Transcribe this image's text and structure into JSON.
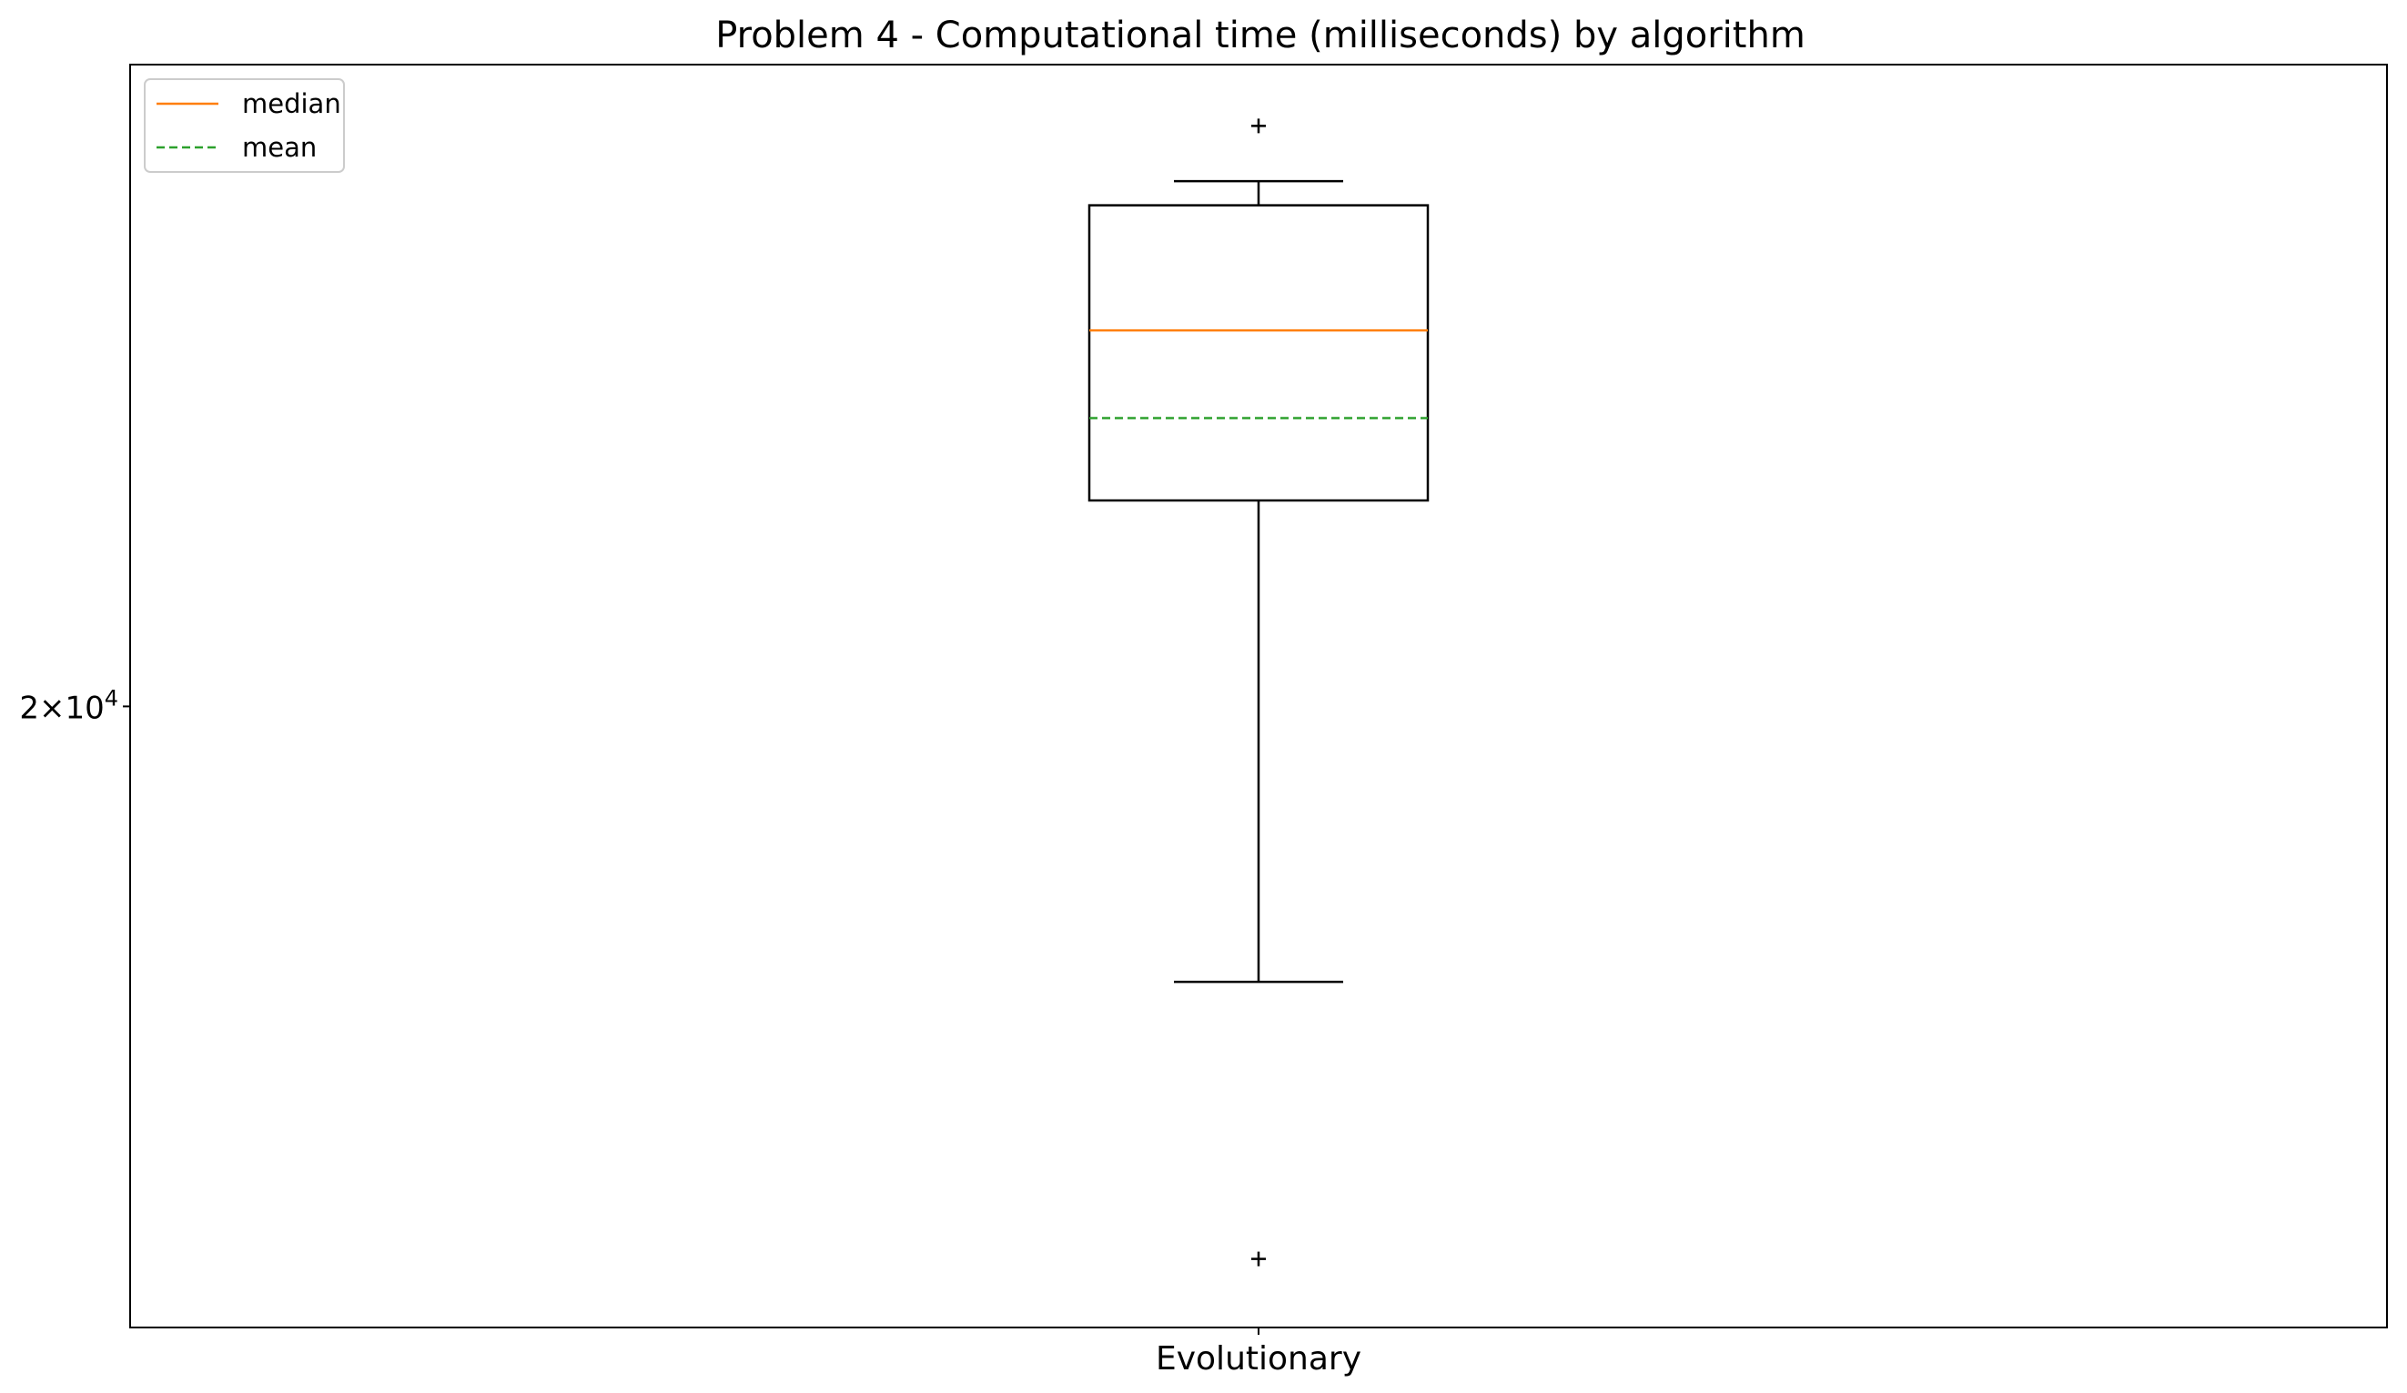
{
  "chart_data": {
    "type": "box",
    "title": "Problem 4 - Computational time (milliseconds) by algorithm",
    "xlabel": "",
    "ylabel": "",
    "y_scale": "log",
    "ylim": [
      14800,
      27300
    ],
    "y_ticks": [
      {
        "value": 20000,
        "label": "2×10",
        "exponent": "4"
      }
    ],
    "categories": [
      "Evolutionary"
    ],
    "boxes": [
      {
        "name": "Evolutionary",
        "whisker_low": 17500,
        "q1": 22100,
        "median": 24000,
        "mean": 23000,
        "q3": 25500,
        "whisker_high": 25800,
        "outliers": [
          26500,
          15300
        ]
      }
    ],
    "legend": {
      "placement": "top-left",
      "entries": [
        {
          "label": "median",
          "color": "#ff7f0e",
          "style": "solid"
        },
        {
          "label": "mean",
          "color": "#2ca02c",
          "style": "dashed"
        }
      ]
    },
    "grid": false,
    "colors": {
      "box": "#000000",
      "median": "#ff7f0e",
      "mean": "#2ca02c"
    }
  }
}
